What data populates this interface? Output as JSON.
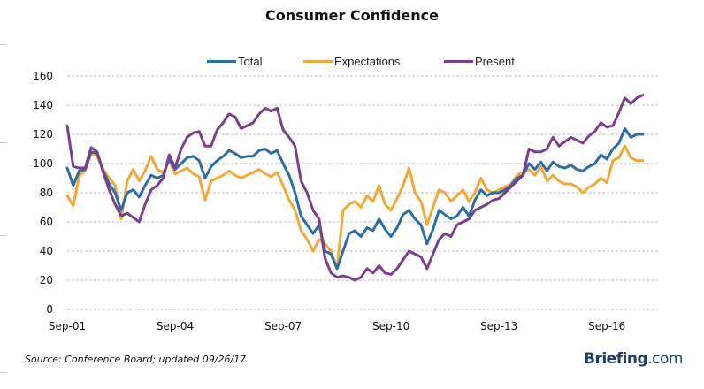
{
  "chart_data": {
    "type": "line",
    "title": "Consumer Confidence",
    "xlabel": "",
    "ylabel": "",
    "ylim": [
      0,
      160
    ],
    "yticks": [
      0,
      20,
      40,
      60,
      80,
      100,
      120,
      140,
      160
    ],
    "xtick_labels": [
      "Sep-01",
      "Sep-04",
      "Sep-07",
      "Sep-10",
      "Sep-13",
      "Sep-16"
    ],
    "xtick_month_index": [
      0,
      36,
      72,
      108,
      144,
      180
    ],
    "x_sampling": "every 2 months starting Sep-01",
    "grid": "horizontal dashed",
    "legend_position": "top-center",
    "x": [
      0,
      2,
      4,
      6,
      8,
      10,
      12,
      14,
      16,
      18,
      20,
      22,
      24,
      26,
      28,
      30,
      32,
      34,
      36,
      38,
      40,
      42,
      44,
      46,
      48,
      50,
      52,
      54,
      56,
      58,
      60,
      62,
      64,
      66,
      68,
      70,
      72,
      74,
      76,
      78,
      80,
      82,
      84,
      86,
      88,
      90,
      92,
      94,
      96,
      98,
      100,
      102,
      104,
      106,
      108,
      110,
      112,
      114,
      116,
      118,
      120,
      122,
      124,
      126,
      128,
      130,
      132,
      134,
      136,
      138,
      140,
      142,
      144,
      146,
      148,
      150,
      152,
      154,
      156,
      158,
      160,
      162,
      164,
      166,
      168,
      170,
      172,
      174,
      176,
      178,
      180,
      182,
      184,
      186,
      188,
      190,
      192
    ],
    "series": [
      {
        "name": "Total",
        "color": "#2e6da4",
        "values": [
          97,
          85,
          95,
          96,
          108,
          107,
          95,
          86,
          80,
          68,
          80,
          82,
          77,
          85,
          92,
          90,
          92,
          103,
          96,
          100,
          104,
          105,
          102,
          90,
          98,
          102,
          105,
          109,
          107,
          104,
          105,
          105,
          109,
          110,
          107,
          109,
          100,
          92,
          80,
          64,
          58,
          52,
          58,
          40,
          38,
          28,
          40,
          52,
          54,
          50,
          56,
          54,
          62,
          55,
          50,
          56,
          65,
          68,
          62,
          58,
          45,
          55,
          68,
          65,
          62,
          64,
          70,
          64,
          75,
          82,
          78,
          80,
          80,
          82,
          85,
          90,
          92,
          100,
          96,
          101,
          95,
          101,
          98,
          97,
          99,
          96,
          95,
          98,
          100,
          106,
          103,
          110,
          114,
          124,
          118,
          120,
          120
        ]
      },
      {
        "name": "Expectations",
        "color": "#f0a83a",
        "values": [
          78,
          71,
          92,
          95,
          107,
          105,
          96,
          90,
          85,
          62,
          88,
          96,
          88,
          95,
          105,
          96,
          94,
          102,
          93,
          95,
          97,
          93,
          91,
          75,
          88,
          90,
          92,
          95,
          92,
          90,
          92,
          94,
          96,
          93,
          91,
          94,
          85,
          75,
          68,
          54,
          48,
          40,
          48,
          45,
          40,
          28,
          68,
          72,
          74,
          70,
          78,
          74,
          85,
          72,
          68,
          76,
          85,
          97,
          80,
          74,
          58,
          70,
          82,
          80,
          74,
          78,
          82,
          74,
          80,
          90,
          82,
          80,
          82,
          84,
          86,
          92,
          94,
          96,
          92,
          98,
          88,
          92,
          88,
          86,
          86,
          84,
          80,
          84,
          86,
          90,
          87,
          102,
          104,
          112,
          104,
          102,
          102
        ]
      },
      {
        "name": "Present",
        "color": "#7b3f8e",
        "values": [
          126,
          98,
          97,
          97,
          111,
          108,
          94,
          82,
          72,
          64,
          66,
          63,
          60,
          72,
          82,
          85,
          90,
          106,
          97,
          110,
          118,
          121,
          122,
          112,
          112,
          123,
          128,
          134,
          132,
          124,
          126,
          128,
          134,
          138,
          136,
          138,
          123,
          118,
          112,
          88,
          80,
          68,
          62,
          35,
          25,
          22,
          23,
          22,
          20,
          22,
          28,
          25,
          30,
          25,
          24,
          28,
          34,
          40,
          38,
          36,
          28,
          38,
          48,
          52,
          50,
          58,
          60,
          62,
          68,
          70,
          72,
          75,
          76,
          80,
          84,
          88,
          92,
          110,
          108,
          108,
          110,
          118,
          112,
          115,
          118,
          116,
          114,
          119,
          122,
          128,
          125,
          126,
          135,
          145,
          141,
          145,
          147
        ]
      }
    ]
  },
  "footer": {
    "source": "Source: Conference Board; updated 09/26/17",
    "brand_main": "Briefing",
    "brand_suffix": ".com"
  }
}
